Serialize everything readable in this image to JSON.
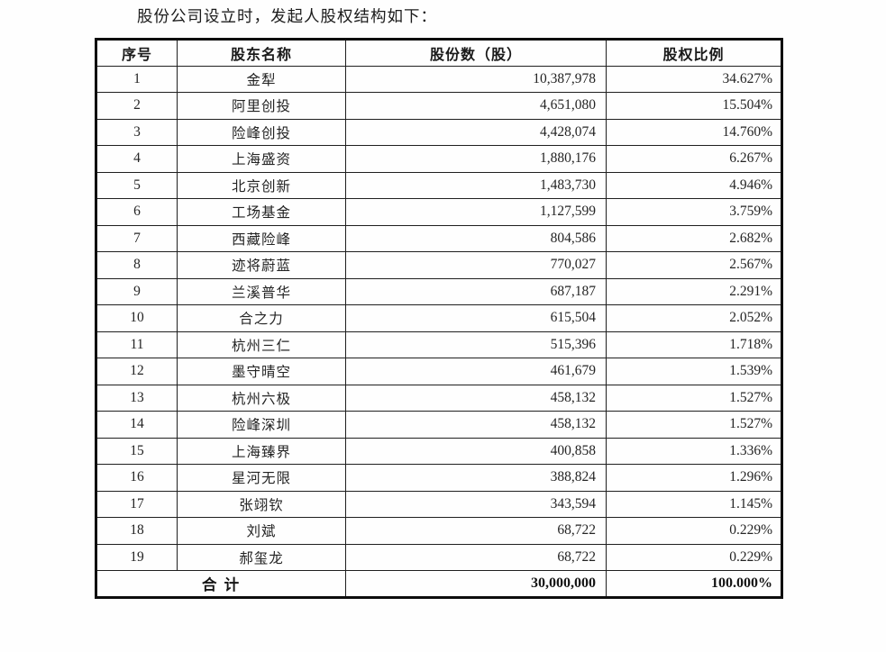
{
  "page": {
    "title": "股份公司设立时，发起人股权结构如下："
  },
  "table": {
    "headers": [
      "序号",
      "股东名称",
      "股份数（股）",
      "股权比例"
    ],
    "rows": [
      [
        "1",
        "金犁",
        "10,387,978",
        "34.627%"
      ],
      [
        "2",
        "阿里创投",
        "4,651,080",
        "15.504%"
      ],
      [
        "3",
        "险峰创投",
        "4,428,074",
        "14.760%"
      ],
      [
        "4",
        "上海盛资",
        "1,880,176",
        "6.267%"
      ],
      [
        "5",
        "北京创新",
        "1,483,730",
        "4.946%"
      ],
      [
        "6",
        "工场基金",
        "1,127,599",
        "3.759%"
      ],
      [
        "7",
        "西藏险峰",
        "804,586",
        "2.682%"
      ],
      [
        "8",
        "迹将蔚蓝",
        "770,027",
        "2.567%"
      ],
      [
        "9",
        "兰溪普华",
        "687,187",
        "2.291%"
      ],
      [
        "10",
        "合之力",
        "615,504",
        "2.052%"
      ],
      [
        "11",
        "杭州三仁",
        "515,396",
        "1.718%"
      ],
      [
        "12",
        "墨守晴空",
        "461,679",
        "1.539%"
      ],
      [
        "13",
        "杭州六极",
        "458,132",
        "1.527%"
      ],
      [
        "14",
        "险峰深圳",
        "458,132",
        "1.527%"
      ],
      [
        "15",
        "上海臻界",
        "400,858",
        "1.336%"
      ],
      [
        "16",
        "星河无限",
        "388,824",
        "1.296%"
      ],
      [
        "17",
        "张翊钦",
        "343,594",
        "1.145%"
      ],
      [
        "18",
        "刘斌",
        "68,722",
        "0.229%"
      ],
      [
        "19",
        "郝玺龙",
        "68,722",
        "0.229%"
      ]
    ],
    "total": {
      "label": "合  计",
      "shares": "30,000,000",
      "ratio": "100.000%"
    }
  }
}
